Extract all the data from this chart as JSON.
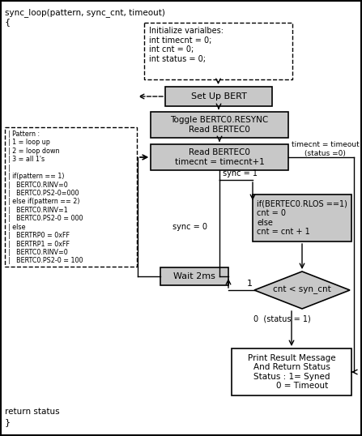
{
  "title_text": "sync_loop(pattern, sync_cnt, timeout)",
  "open_brace": "{",
  "close_brace": "}",
  "return_text": "return status",
  "bg_color": "#ffffff",
  "init_box": "Initialize varialbes:\nint timecnt = 0;\nint cnt = 0;\nint status = 0;",
  "setup_box": "Set Up BERT",
  "toggle_box": "Toggle BERTC0.RESYNC\nRead BERTEC0",
  "read_box": "Read BERTEC0\ntimecnt = timecnt+1",
  "if_box": "if(BERTEC0.RLOS ==1)\ncnt = 0\nelse\ncnt = cnt + 1",
  "diamond_box": "cnt < syn_cnt",
  "print_box": "Print Result Message\nAnd Return Status\nStatus : 1= Syned\n        0 = Timeout",
  "wait_box": "Wait 2ms",
  "pattern_line1": "| Pattern :",
  "pattern_line2": "| 1 = loop up",
  "pattern_line3": "| 2 = loop down",
  "pattern_line4": "| 3 = all 1's",
  "pattern_line5": "|",
  "pattern_line6": "| if(pattern == 1)",
  "pattern_line7": "|   BERTC0.RINV=0",
  "pattern_line8": "|   BERTC0.PS2-0=000",
  "pattern_line9": "| else if(pattern == 2)",
  "pattern_line10": "|   BERTC0.RINV=1",
  "pattern_line11": "|   BERTC0.PS2-0 = 000",
  "pattern_line12": "| else",
  "pattern_line13": "|   BERTRP0 = 0xFF",
  "pattern_line14": "|   BERTRP1 = 0xFF",
  "pattern_line15": "|   BERTC0.RINV=0",
  "pattern_line16": "|   BERTC0.PS2-0 = 100",
  "label_sync1": "sync = 1",
  "label_sync0": "sync = 0",
  "label_timeout": "timecnt = timeout\n(status =0)",
  "label_1": "1",
  "label_0": "0  (status = 1)"
}
